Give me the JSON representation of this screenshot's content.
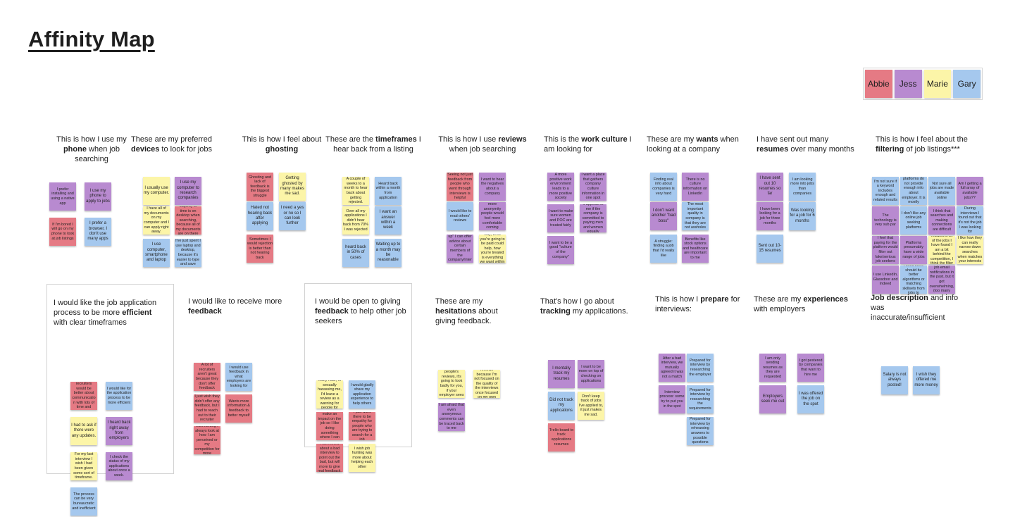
{
  "title": "Affinity Map",
  "legend": [
    {
      "name": "Abbie",
      "color": "#e57a84"
    },
    {
      "name": "Jess",
      "color": "#b88ad0"
    },
    {
      "name": "Marie",
      "color": "#fcf5a8"
    },
    {
      "name": "Gary",
      "color": "#a5c8ee"
    }
  ],
  "clusters": [
    {
      "id": "phone",
      "title_pre": "This is how I use my ",
      "title_bold": "phone",
      "title_post": " when job searching",
      "notes": [
        {
          "text": "I prefer installing and using a native app",
          "color": "jess"
        },
        {
          "text": "I use my phone to apply to jobs",
          "color": "jess"
        },
        {
          "text": "If I'm bored I will go on my phone to look at job listings",
          "color": "abbie"
        },
        {
          "text": "I prefer a browser, I don't use many apps",
          "color": "gary"
        }
      ]
    },
    {
      "id": "devices",
      "title_pre": "These are my preferred ",
      "title_bold": "devices",
      "title_post": " to look for jobs",
      "notes": [
        {
          "text": "I usually use my computer.",
          "color": "marie"
        },
        {
          "text": "I use my computer to research companies",
          "color": "jess"
        },
        {
          "text": "I have all of my documents on my computer and I can apply right away.",
          "color": "marie"
        },
        {
          "text": "Majority of time is on desktop when searching, because all of my documents are on there",
          "color": "abbie"
        },
        {
          "text": "I use computer, smartphone and laptop",
          "color": "gary"
        },
        {
          "text": "I've just spent I use laptop and desktop, because it's easier to type and save",
          "color": "gary"
        }
      ]
    },
    {
      "id": "ghosting",
      "title_pre": "This is how I feel about ",
      "title_bold": "ghosting",
      "title_post": "",
      "notes": [
        {
          "text": "Ghosting and lack of feedback is the biggest struggle",
          "color": "abbie"
        },
        {
          "text": "Getting ghosted by many makes me sad.",
          "color": "marie"
        },
        {
          "text": "Hated not hearing back after applying",
          "color": "gary"
        },
        {
          "text": "I need a yes or no so I can look further",
          "color": "gary"
        },
        {
          "text": "Sometimes I would rejection is better than not hearing back",
          "color": "abbie"
        }
      ]
    },
    {
      "id": "timeframes",
      "title_pre": "These are the ",
      "title_bold": "timeframes",
      "title_post": " I hear back from a listing",
      "notes": [
        {
          "text": "A couple of weeks to a month to hear back about getting rejected.",
          "color": "marie"
        },
        {
          "text": "Heard back within a month from application",
          "color": "gary"
        },
        {
          "text": "Over all my applications I didn't hear back from 70% I was rejected",
          "color": "marie"
        },
        {
          "text": "I want an answer within a week",
          "color": "gary"
        },
        {
          "text": "heard back in 50% of cases",
          "color": "gary"
        },
        {
          "text": "Waiting up to a month may be reasonable",
          "color": "gary"
        }
      ]
    },
    {
      "id": "reviews",
      "title_pre": "This is how I use ",
      "title_bold": "reviews",
      "title_post": " when job searching",
      "notes": [
        {
          "text": "Seeing not just feedback from people who went through interviews is helpful",
          "color": "abbie"
        },
        {
          "text": "I want to hear the negatives about a company",
          "color": "jess"
        },
        {
          "text": "I would like to read others' reviews",
          "color": "gary"
        },
        {
          "text": "If there was more anonymity people would feel more comfortable coming forward",
          "color": "jess"
        },
        {
          "text": "On a \"highest up\" I can offer advice about certain members of the company/internal posts",
          "color": "jess"
        },
        {
          "text": "Looks on a big way, what you're going to be paid could help, how you're treated is everything we want within each interview",
          "color": "marie"
        }
      ]
    },
    {
      "id": "culture",
      "title_pre": "This is the ",
      "title_bold": "work culture",
      "title_post": " I am looking for",
      "notes": [
        {
          "text": "A more positive work environment leads to a more positive society",
          "color": "jess"
        },
        {
          "text": "I want a place that gathers company culture information in one spot",
          "color": "jess"
        },
        {
          "text": "I want to make sure women and POC are treated fairly",
          "color": "jess"
        },
        {
          "text": "It appeals to me if the company is committed to paying men and women equally",
          "color": "jess"
        },
        {
          "text": "I want to be a good \"culture of the company\"",
          "color": "jess"
        }
      ]
    },
    {
      "id": "wants",
      "title_pre": "These are my ",
      "title_bold": "wants",
      "title_post": " when looking at a company",
      "notes": [
        {
          "text": "Finding real info about companies is very hard",
          "color": "gary"
        },
        {
          "text": "There is no culture information on LinkedIn",
          "color": "jess"
        },
        {
          "text": "I don't want another \"bad boss\"",
          "color": "jess"
        },
        {
          "text": "The most important quality in company is that they are not assholes",
          "color": "gary"
        },
        {
          "text": "A struggle: finding a job that I'd really like",
          "color": "gary"
        },
        {
          "text": "Benefits like stock options and healthcare are important to me",
          "color": "jess"
        }
      ]
    },
    {
      "id": "resumes",
      "title_pre": "I have sent out many ",
      "title_bold": "resumes",
      "title_post": " over many months",
      "notes": [
        {
          "text": "I have sent out 10 resumes so far",
          "color": "jess"
        },
        {
          "text": "I am looking more into jobs than companies",
          "color": "gary"
        },
        {
          "text": "I have been looking for a job for three months",
          "color": "jess"
        },
        {
          "text": "Was looking for a job for 6 months",
          "color": "gary"
        },
        {
          "text": "Sent out 10-15 resumes",
          "color": "gary"
        }
      ]
    },
    {
      "id": "filtering",
      "title_pre": "This is how I feel about the ",
      "title_bold": "filtering",
      "title_post": " of job listings***",
      "notes": [
        {
          "text": "I'm not sure if a keyword includes enough and related results",
          "color": "gary"
        },
        {
          "text": "Online platforms do not provide enough info about employer. It is mostly advertisement",
          "color": "gary"
        },
        {
          "text": "Not sure all jobs are made available online",
          "color": "gary"
        },
        {
          "text": "Am I getting a full array of available jobs??",
          "color": "jess"
        },
        {
          "text": "The technology is very sub par",
          "color": "jess"
        },
        {
          "text": "I don't like any online job seeking platforms",
          "color": "gary"
        },
        {
          "text": "I think that searches and making connections are difficult",
          "color": "jess"
        },
        {
          "text": "During interviews I found out that it's not the job I was looking for",
          "color": "gary"
        },
        {
          "text": "I feel that paying for the platform would filter out fake/serious job seekers",
          "color": "jess"
        },
        {
          "text": "Platforms presumably have a wide range of jobs",
          "color": "jess"
        },
        {
          "text": "Since I started searching I realized a lot of the jobs I have found I am a bit behind the competition, I think the filter system is outdated",
          "color": "marie"
        },
        {
          "text": "I like how they can really narrow down searches when matches your interests",
          "color": "marie"
        },
        {
          "text": "I use LinkedIn, Glassdoor and Indeed",
          "color": "jess"
        },
        {
          "text": "For quick info, I think there should be better algorithms or matching skillsets from jobs to employees",
          "color": "gary"
        },
        {
          "text": "Signed up for job email notifications in the past, but it got overwhelming, (too many emails)",
          "color": "jess"
        }
      ]
    },
    {
      "id": "efficient",
      "title_pre": "I would like the job application process to be more ",
      "title_bold": "efficient",
      "title_post": " with clear timeframes",
      "notes": [
        {
          "text": "Wish that recruiters would be better about communication with lots of time and scheduling",
          "color": "abbie"
        },
        {
          "text": "I would like for the application process to be more efficient",
          "color": "gary"
        },
        {
          "text": "I had to ask if there were any updates.",
          "color": "marie"
        },
        {
          "text": "I heard back right away from employers",
          "color": "jess"
        },
        {
          "text": "For my last interview I wish I had been given some sort of timeframe.",
          "color": "marie"
        },
        {
          "text": "I check the status of my applications about once a week.",
          "color": "jess"
        },
        {
          "text": "The process can be very bureaucratic and inefficient",
          "color": "gary"
        }
      ]
    },
    {
      "id": "receive",
      "title_pre": "I would like to receive more ",
      "title_bold": "feedback",
      "title_post": "",
      "notes": [
        {
          "text": "A lot of recruiters aren't great because they don't offer feedback",
          "color": "abbie"
        },
        {
          "text": "I would use feedback in what employers are looking for",
          "color": "gary"
        },
        {
          "text": "I just wish they didn't offer any feedback, but I had to reach out to their recruiter",
          "color": "abbie"
        },
        {
          "text": "Wants more information & feedback to better myself",
          "color": "abbie"
        },
        {
          "text": "After interviewing I always look at how I am perceived or my competition for more interviews",
          "color": "abbie"
        }
      ]
    },
    {
      "id": "giving",
      "title_pre": "I would be open to giving ",
      "title_bold": "feedback",
      "title_post": " to help other job seekers",
      "notes": [
        {
          "text": "If they were really rude, or sexually harassing me, I'd leave a review as a warning for people for safety reasons",
          "color": "marie"
        },
        {
          "text": "I would gladly share my application experience to help others",
          "color": "gary"
        },
        {
          "text": "I will go above and beyond to make an impact on the job so I like doing something where I can change the culture",
          "color": "abbie"
        },
        {
          "text": "I just want there to be empathy for people who are trying to search for a job",
          "color": "abbie"
        },
        {
          "text": "I will review about a bad interview to point out the bad, but will more to give real feedback.",
          "color": "abbie"
        },
        {
          "text": "I wish job hunting was more about helping each other",
          "color": "marie"
        }
      ]
    },
    {
      "id": "hesitations",
      "title_pre": "These are my ",
      "title_bold": "hesitations",
      "title_post": " about giving feedback.",
      "notes": [
        {
          "text": "I'm worried about other people's reviews, it's going to look badly for you, if your employer sees your bad reviews",
          "color": "marie"
        },
        {
          "text": "I don't leave reviews because I'm not focused on the quality of the interviews once focused on my own performance",
          "color": "marie"
        },
        {
          "text": "I am afraid that even anonymous comments can be traced back to me",
          "color": "jess"
        }
      ]
    },
    {
      "id": "tracking",
      "title_pre": "That's how I go about ",
      "title_bold": "tracking",
      "title_post": " my applications.",
      "notes": [
        {
          "text": "I mentally track my resumes",
          "color": "jess"
        },
        {
          "text": "I want to be more on top of checking on applications",
          "color": "jess"
        },
        {
          "text": "Did not track my applications",
          "color": "gary"
        },
        {
          "text": "Don't keep track of jobs I've applied to, it just makes me sad.",
          "color": "marie"
        },
        {
          "text": "Trello board to track applications resumes",
          "color": "abbie"
        }
      ]
    },
    {
      "id": "prepare",
      "title_pre": "This is how I ",
      "title_bold": "prepare",
      "title_post": " for interviews:",
      "notes": [
        {
          "text": "After a bad interview, we mutually agreed it was not a match",
          "color": "jess"
        },
        {
          "text": "Prepared for interview by researching the employer",
          "color": "gary"
        },
        {
          "text": "Interview process: some try to put you in the spot",
          "color": "jess"
        },
        {
          "text": "Prepared for interview by researching the requirements",
          "color": "gary"
        },
        {
          "text": "Prepared for interview by rehearsing answers to possible questions",
          "color": "gary"
        }
      ]
    },
    {
      "id": "experiences",
      "title_pre": "These are my ",
      "title_bold": "experiences",
      "title_post": " with employers",
      "notes": [
        {
          "text": "I am only sending resumes as they are requested",
          "color": "jess"
        },
        {
          "text": "I got pestered by companies that want to hire me",
          "color": "jess"
        },
        {
          "text": "Employers seek me out",
          "color": "jess"
        },
        {
          "text": "I was offered the job on the spot",
          "color": "gary"
        }
      ]
    },
    {
      "id": "description",
      "title_pre": "",
      "title_bold": "Job description",
      "title_post": " and info was inaccurate/insufficient",
      "notes": [
        {
          "text": "Salary is not always posted!",
          "color": "gary"
        },
        {
          "text": "I wish they offered me more money",
          "color": "gary"
        }
      ]
    }
  ]
}
